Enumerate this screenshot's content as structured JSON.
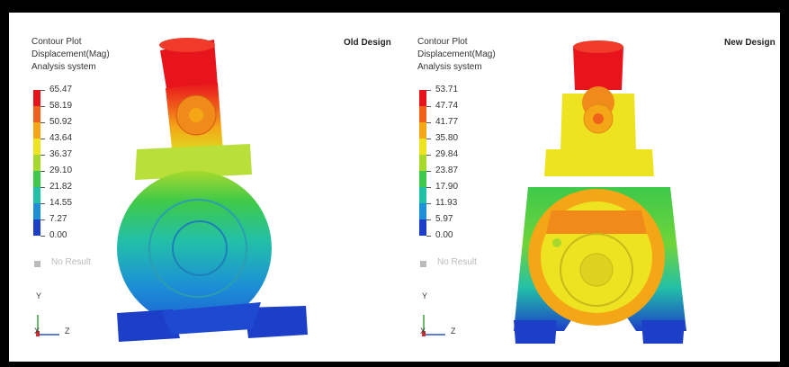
{
  "panels": [
    {
      "header": [
        "Contour Plot",
        "Displacement(Mag)",
        "Analysis system"
      ],
      "title": "Old Design",
      "legend": [
        "65.47",
        "58.19",
        "50.92",
        "43.64",
        "36.37",
        "29.10",
        "21.82",
        "14.55",
        "7.27",
        "0.00"
      ],
      "no_result": "No Result",
      "axes": {
        "y": "Y",
        "x": "X",
        "z": "Z"
      }
    },
    {
      "header": [
        "Contour Plot",
        "Displacement(Mag)",
        "Analysis system"
      ],
      "title": "New Design",
      "legend": [
        "53.71",
        "47.74",
        "41.77",
        "35.80",
        "29.84",
        "23.87",
        "17.90",
        "11.93",
        "5.97",
        "0.00"
      ],
      "no_result": "No Result",
      "axes": {
        "y": "Y",
        "x": "X",
        "z": "Z"
      }
    }
  ],
  "colors": {
    "scale": [
      "#e8141c",
      "#f0621a",
      "#f5a617",
      "#eee321",
      "#a6d92c",
      "#3ec94a",
      "#23c0a8",
      "#1c8fd6",
      "#1d3fc8"
    ]
  }
}
